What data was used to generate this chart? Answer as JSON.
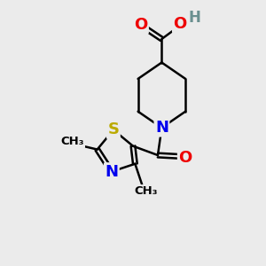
{
  "background_color": "#ebebeb",
  "atom_colors": {
    "C": "#000000",
    "N": "#0000ee",
    "O": "#ee0000",
    "S": "#bbaa00",
    "H": "#6a9090"
  },
  "bond_color": "#000000",
  "bond_width": 1.8,
  "figsize": [
    3.0,
    3.0
  ],
  "dpi": 100
}
